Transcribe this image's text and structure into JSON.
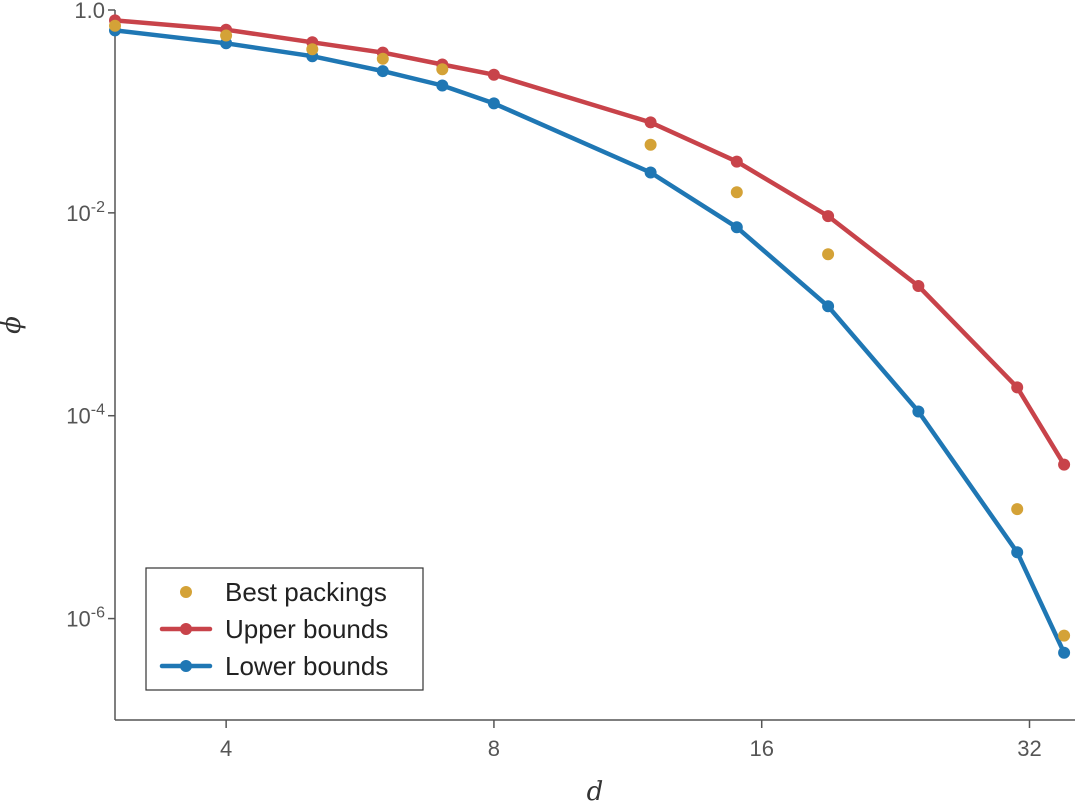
{
  "chart_data": {
    "type": "line",
    "xlabel": "d",
    "ylabel": "ϕ",
    "x_scale": "log2",
    "y_scale": "log10",
    "xlim": [
      3,
      36
    ],
    "ylim": [
      1e-07,
      1.0
    ],
    "x_ticks": [
      {
        "value": 4,
        "label": "4"
      },
      {
        "value": 8,
        "label": "8"
      },
      {
        "value": 16,
        "label": "16"
      },
      {
        "value": 32,
        "label": "32"
      }
    ],
    "y_ticks": [
      {
        "value": 1.0,
        "label": "1.0",
        "base": "",
        "exp": ""
      },
      {
        "value": 0.01,
        "label": "",
        "base": "10",
        "exp": "-2"
      },
      {
        "value": 0.0001,
        "label": "",
        "base": "10",
        "exp": "-4"
      },
      {
        "value": 1e-06,
        "label": "",
        "base": "10",
        "exp": "-6"
      }
    ],
    "grid": false,
    "legend_position": "bottom-left",
    "series": [
      {
        "name": "Best packings",
        "style": "markers",
        "color": "#D4A237",
        "x": [
          3,
          4,
          5,
          6,
          7,
          12,
          15,
          19,
          31,
          35
        ],
        "y": [
          0.7,
          0.56,
          0.41,
          0.33,
          0.26,
          0.047,
          0.016,
          0.0039,
          1.2e-05,
          6.8e-07
        ]
      },
      {
        "name": "Upper bounds",
        "style": "line+markers",
        "color": "#C8434A",
        "x": [
          3,
          4,
          5,
          6,
          7,
          8,
          12,
          15,
          19,
          24,
          31,
          35
        ],
        "y": [
          0.79,
          0.64,
          0.48,
          0.38,
          0.29,
          0.23,
          0.078,
          0.032,
          0.0093,
          0.0019,
          0.00019,
          3.3e-05
        ]
      },
      {
        "name": "Lower bounds",
        "style": "line+markers",
        "color": "#1F77B4",
        "x": [
          3,
          4,
          5,
          6,
          7,
          8,
          12,
          15,
          19,
          24,
          31,
          35
        ],
        "y": [
          0.63,
          0.47,
          0.35,
          0.25,
          0.18,
          0.12,
          0.025,
          0.0072,
          0.0012,
          0.00011,
          4.5e-06,
          4.6e-07
        ]
      }
    ]
  }
}
